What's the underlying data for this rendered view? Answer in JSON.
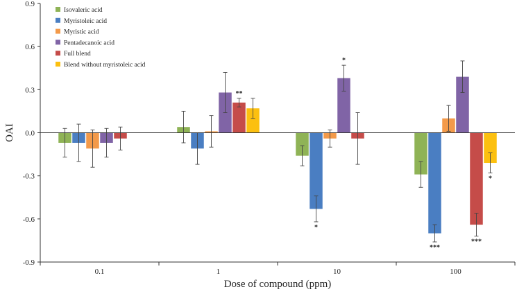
{
  "chart_data": {
    "type": "bar",
    "title": "",
    "xlabel": "Dose of compound (ppm)",
    "ylabel": "OAI",
    "ylim": [
      -0.9,
      0.9
    ],
    "yticks": [
      "0.9",
      "0.6",
      "0.3",
      "0.0",
      "-0.3",
      "-0.6",
      "-0.9"
    ],
    "ytick_values": [
      0.9,
      0.6,
      0.3,
      0.0,
      -0.3,
      -0.6,
      -0.9
    ],
    "categories": [
      "0.1",
      "1",
      "10",
      "100"
    ],
    "grid": false,
    "legend_position": "top-left",
    "series": [
      {
        "name": "Isovaleric acid",
        "color": "#8fb356",
        "values": [
          -0.07,
          0.04,
          -0.16,
          -0.29
        ],
        "errors": [
          0.1,
          0.11,
          0.07,
          0.09
        ],
        "significance": [
          "",
          "",
          "",
          ""
        ]
      },
      {
        "name": "Myristoleic acid",
        "color": "#4a7ec2",
        "values": [
          -0.07,
          -0.11,
          -0.53,
          -0.7
        ],
        "errors": [
          0.13,
          0.11,
          0.09,
          0.06
        ],
        "significance": [
          "",
          "",
          "*",
          "***"
        ]
      },
      {
        "name": "Myristic acid",
        "color": "#f39a4a",
        "values": [
          -0.11,
          0.01,
          -0.04,
          0.1
        ],
        "errors": [
          0.13,
          0.11,
          0.06,
          0.09
        ],
        "significance": [
          "",
          "",
          "",
          ""
        ]
      },
      {
        "name": "Pentadecanoic acid",
        "color": "#8064a6",
        "values": [
          -0.07,
          0.28,
          0.38,
          0.39
        ],
        "errors": [
          0.1,
          0.14,
          0.09,
          0.11
        ],
        "significance": [
          "",
          "",
          "*",
          ""
        ]
      },
      {
        "name": "Full blend",
        "color": "#c54c49",
        "values": [
          -0.04,
          0.21,
          -0.04,
          -0.64
        ],
        "errors": [
          0.08,
          0.03,
          0.18,
          0.08
        ],
        "significance": [
          "",
          "**",
          "",
          "***"
        ]
      },
      {
        "name": "Blend without myristoleic acid",
        "color": "#fcc010",
        "values": [
          null,
          0.17,
          null,
          -0.21
        ],
        "errors": [
          null,
          0.07,
          null,
          0.07
        ],
        "significance": [
          "",
          "",
          "",
          "*"
        ]
      }
    ]
  }
}
